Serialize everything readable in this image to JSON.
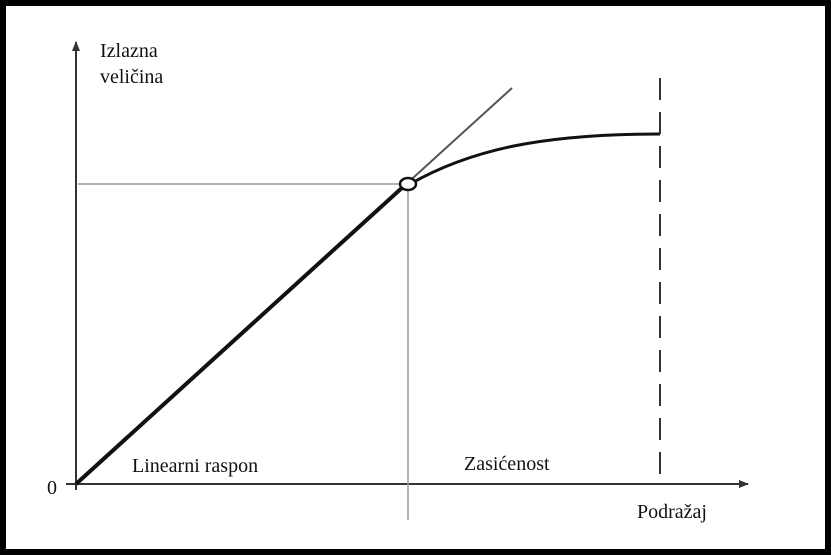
{
  "diagram": {
    "y_axis_label_line1": "Izlazna",
    "y_axis_label_line2": "veličina",
    "x_axis_label": "Podražaj",
    "origin_label": "0",
    "region_linear_label": "Linearni raspon",
    "region_saturation_label": "Zasićenost"
  },
  "colors": {
    "frame": "#000000",
    "axis": "#333333",
    "curve": "#111111",
    "guide": "#9a9a9a",
    "tangent": "#555555"
  }
}
